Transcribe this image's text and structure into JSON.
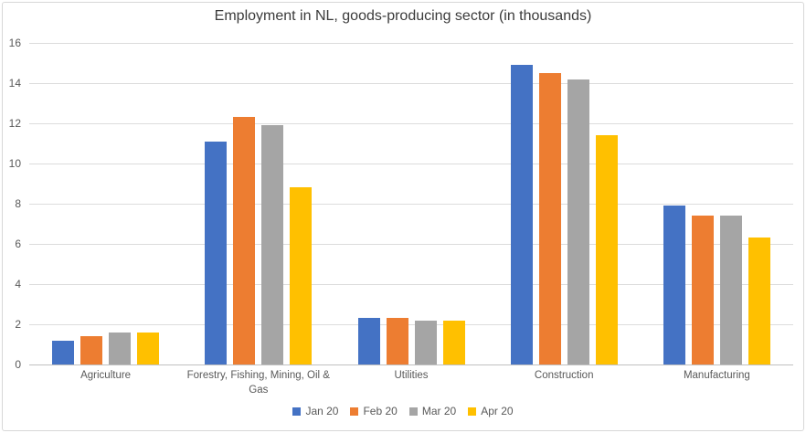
{
  "chart_data": {
    "type": "bar",
    "title": "Employment in NL, goods-producing sector (in thousands)",
    "categories": [
      "Agriculture",
      "Forestry, Fishing, Mining, Oil & Gas",
      "Utilities",
      "Construction",
      "Manufacturing"
    ],
    "category_label_lines": [
      [
        "Agriculture"
      ],
      [
        "Forestry, Fishing, Mining, Oil &",
        "Gas"
      ],
      [
        "Utilities"
      ],
      [
        "Construction"
      ],
      [
        "Manufacturing"
      ]
    ],
    "series": [
      {
        "name": "Jan 20",
        "color": "#4472C4",
        "values": [
          1.2,
          11.1,
          2.3,
          14.9,
          7.9
        ]
      },
      {
        "name": "Feb 20",
        "color": "#ED7D31",
        "values": [
          1.4,
          12.3,
          2.3,
          14.5,
          7.4
        ]
      },
      {
        "name": "Mar 20",
        "color": "#A5A5A5",
        "values": [
          1.6,
          11.9,
          2.2,
          14.2,
          7.4
        ]
      },
      {
        "name": "Apr 20",
        "color": "#FFC000",
        "values": [
          1.6,
          8.8,
          2.2,
          11.4,
          6.3
        ]
      }
    ],
    "xlabel": "",
    "ylabel": "",
    "ylim": [
      0,
      16
    ],
    "ytick_step": 2,
    "yticks": [
      "0",
      "2",
      "4",
      "6",
      "8",
      "10",
      "12",
      "14",
      "16"
    ],
    "grid": true,
    "legend_position": "bottom",
    "colors": {
      "gridline": "#dcdcdc",
      "axis_line": "#c0c0c0",
      "tick_text": "#595959",
      "title_text": "#3b3b3b",
      "background": "#ffffff"
    }
  }
}
